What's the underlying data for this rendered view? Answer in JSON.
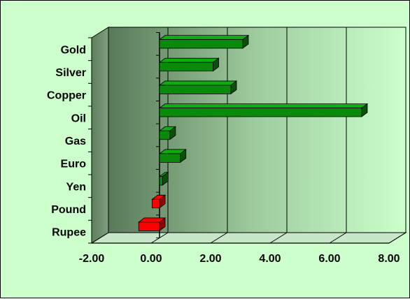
{
  "chart_data": {
    "type": "bar",
    "orientation": "horizontal",
    "style": "3d",
    "categories": [
      "Gold",
      "Silver",
      "Copper",
      "Oil",
      "Gas",
      "Euro",
      "Yen",
      "Pound",
      "Rupee"
    ],
    "values": [
      2.8,
      1.8,
      2.4,
      6.8,
      0.35,
      0.7,
      0.1,
      -0.25,
      -0.7
    ],
    "xlim": [
      -2,
      8
    ],
    "x_ticks": [
      "-2.00",
      "0.00",
      "2.00",
      "4.00",
      "6.00",
      "8.00"
    ],
    "grid": true,
    "legend": "none",
    "colors": {
      "positive": "#0a8a0a",
      "negative": "#ff0000",
      "background": "#ccffcc"
    }
  }
}
